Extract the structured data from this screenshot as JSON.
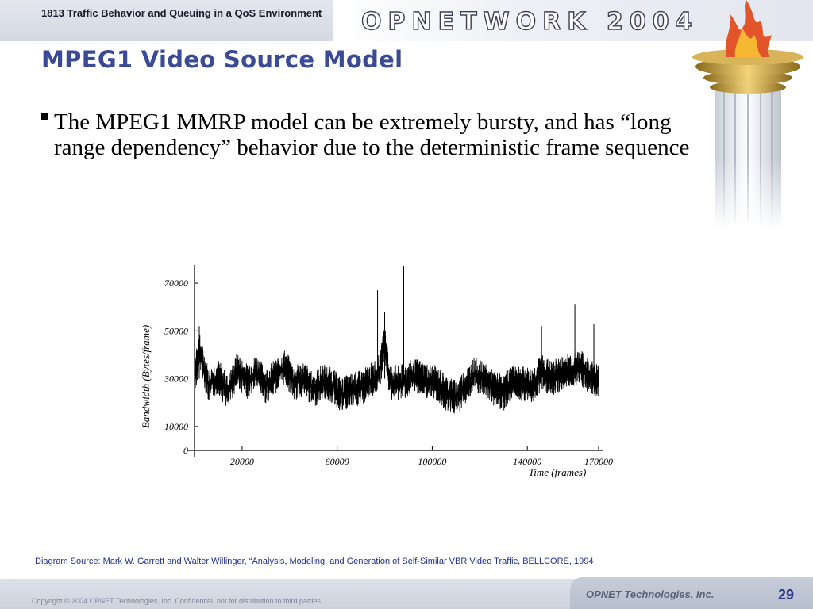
{
  "header": {
    "course": "1813 Traffic Behavior and Queuing in a QoS Environment",
    "logo": "OPNETWORK 2004"
  },
  "title": "MPEG1 Video Source Model",
  "bullets": [
    "The MPEG1 MMRP model can be extremely bursty, and has “long range dependency” behavior due to the deterministic frame sequence"
  ],
  "chart_data": {
    "type": "line",
    "ylabel": "Bandwidth (Bytes/frame)",
    "xlabel": "Time (frames)",
    "xlim": [
      0,
      172000
    ],
    "ylim": [
      0,
      75000
    ],
    "x_ticks": [
      "20000",
      "60000",
      "100000",
      "140000",
      "170000"
    ],
    "y_ticks": [
      "0",
      "10000",
      "30000",
      "50000",
      "70000"
    ],
    "series": [
      {
        "x": [
          0,
          2000,
          6000,
          10000,
          14000,
          18000,
          22000,
          26000,
          30000,
          34000,
          38000,
          42000,
          46000,
          50000,
          54000,
          58000,
          62000,
          66000,
          70000,
          74000,
          78000,
          80000,
          82000,
          86000,
          90000,
          94000,
          98000,
          102000,
          106000,
          110000,
          114000,
          118000,
          122000,
          126000,
          130000,
          134000,
          138000,
          142000,
          146000,
          150000,
          154000,
          158000,
          162000,
          166000,
          170000
        ],
        "y": [
          30000,
          42000,
          27000,
          31000,
          24000,
          34000,
          29000,
          33000,
          27000,
          31000,
          35000,
          28000,
          30000,
          25000,
          29000,
          27000,
          23000,
          25000,
          26000,
          29000,
          33000,
          46000,
          29000,
          28000,
          30000,
          31000,
          29000,
          28000,
          24000,
          22000,
          27000,
          32000,
          29000,
          26000,
          24000,
          30000,
          28000,
          27000,
          33000,
          30000,
          32000,
          34000,
          35000,
          31000,
          29000
        ]
      }
    ],
    "spikes": [
      {
        "x": 2000,
        "y": 52000
      },
      {
        "x": 77000,
        "y": 67000
      },
      {
        "x": 80000,
        "y": 58000
      },
      {
        "x": 88000,
        "y": 77000
      },
      {
        "x": 146000,
        "y": 52000
      },
      {
        "x": 160000,
        "y": 61000
      },
      {
        "x": 168000,
        "y": 53000
      }
    ]
  },
  "source": "Diagram Source:  Mark W. Garrett and Walter Willinger, “Analysis, Modeling, and Generation of Self-Similar VBR Video Traffic, BELLCORE, 1994",
  "footer": {
    "copyright": "Copyright © 2004 OPNET Technologies, Inc.  Confidential, not for distribution to third parties.",
    "company": "OPNET Technologies, Inc.",
    "page": "29"
  },
  "colors": {
    "title": "#3a4a96",
    "source": "#1f2f8f",
    "page_number": "#2e3c8c"
  }
}
